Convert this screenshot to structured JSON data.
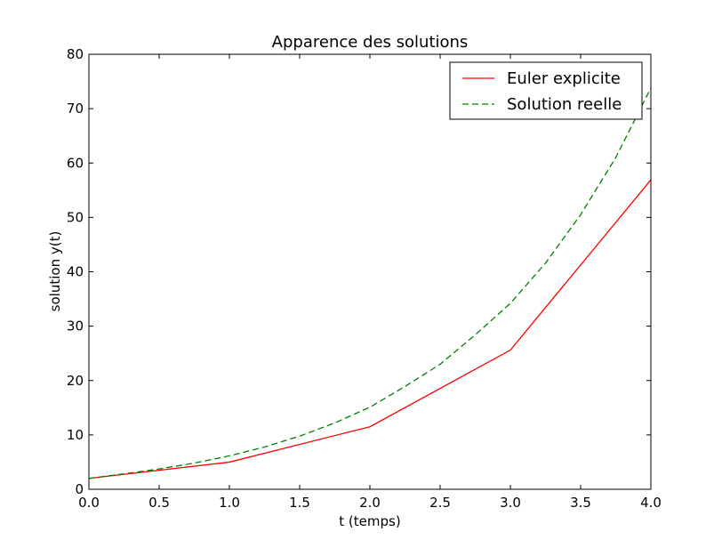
{
  "chart_data": {
    "type": "line",
    "title": "Apparence des solutions",
    "xlabel": "t (temps)",
    "ylabel": "solution y(t)",
    "xlim": [
      0,
      4
    ],
    "ylim": [
      0,
      80
    ],
    "xticks": [
      0.0,
      0.5,
      1.0,
      1.5,
      2.0,
      2.5,
      3.0,
      3.5,
      4.0
    ],
    "xtick_labels": [
      "0.0",
      "0.5",
      "1.0",
      "1.5",
      "2.0",
      "2.5",
      "3.0",
      "3.5",
      "4.0"
    ],
    "yticks": [
      0,
      10,
      20,
      30,
      40,
      50,
      60,
      70,
      80
    ],
    "ytick_labels": [
      "0",
      "10",
      "20",
      "30",
      "40",
      "50",
      "60",
      "70",
      "80"
    ],
    "grid": false,
    "legend_position": "top-right",
    "series": [
      {
        "name": "Euler explicite",
        "color": "#ff0000",
        "style": "solid",
        "x": [
          0,
          1,
          2,
          3,
          4
        ],
        "y": [
          2,
          5,
          11.5,
          25.6,
          56.9
        ]
      },
      {
        "name": "Solution reelle",
        "color": "#008000",
        "style": "dashed",
        "x": [
          0,
          0.25,
          0.5,
          0.75,
          1.0,
          1.25,
          1.5,
          1.75,
          2.0,
          2.25,
          2.5,
          2.75,
          3.0,
          3.25,
          3.5,
          3.75,
          4.0
        ],
        "y": [
          2.0,
          2.84,
          3.74,
          4.82,
          6.15,
          7.78,
          9.78,
          12.2,
          15.1,
          18.9,
          23.0,
          28.4,
          34.2,
          41.6,
          50.5,
          61.0,
          73.8
        ]
      }
    ]
  }
}
